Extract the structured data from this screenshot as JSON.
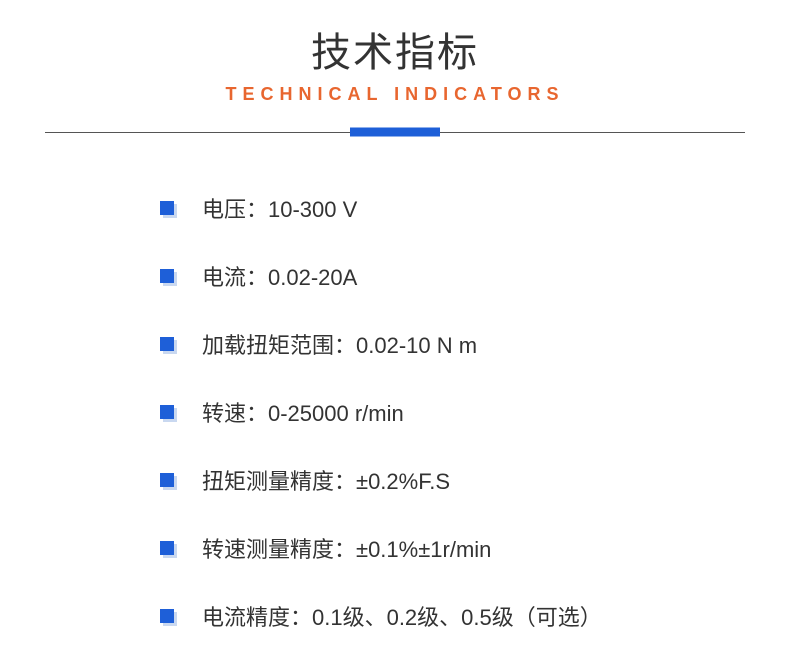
{
  "header": {
    "title_cn": "技术指标",
    "title_en": "TECHNICAL INDICATORS",
    "title_cn_color": "#333333",
    "title_en_color": "#e8662f",
    "divider_line_color": "#555555",
    "divider_bar_color": "#1e5fd8"
  },
  "specs": {
    "bullet_color_main": "#1e5fd8",
    "bullet_color_shadow": "#c9d8f0",
    "text_color": "#333333",
    "items": [
      "电压：10-300 V",
      "电流：0.02-20A",
      "加载扭矩范围：0.02-10 N m",
      "转速：0-25000 r/min",
      "扭矩测量精度：±0.2%F.S",
      "转速测量精度：±0.1%±1r/min",
      "电流精度：0.1级、0.2级、0.5级（可选）"
    ]
  }
}
